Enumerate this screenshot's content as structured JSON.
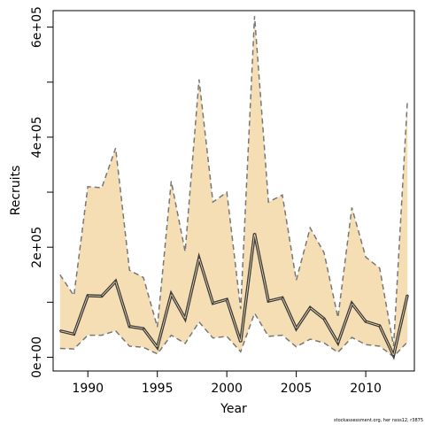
{
  "chart_data": {
    "type": "area",
    "title": "",
    "xlabel": "Year",
    "ylabel": "Recruits",
    "xlim": [
      1987.5,
      2013.5
    ],
    "ylim": [
      -25000,
      630000
    ],
    "x_ticks": [
      1990,
      1995,
      2000,
      2005,
      2010
    ],
    "x_tick_labels": [
      "1990",
      "1995",
      "2000",
      "2005",
      "2010"
    ],
    "y_ticks": [
      0,
      100000,
      200000,
      300000,
      400000,
      500000,
      600000
    ],
    "y_labeled_ticks": [
      0,
      200000,
      400000,
      600000
    ],
    "y_tick_labels": [
      "0e+00",
      "2e+05",
      "4e+05",
      "6e+05"
    ],
    "grid": false,
    "years": [
      1988,
      1989,
      1990,
      1991,
      1992,
      1993,
      1994,
      1995,
      1996,
      1997,
      1998,
      1999,
      2000,
      2001,
      2002,
      2003,
      2004,
      2005,
      2006,
      2007,
      2008,
      2009,
      2010,
      2011,
      2012,
      2013
    ],
    "series": [
      {
        "values": [
          48000,
          42000,
          112000,
          111000,
          138000,
          56000,
          52000,
          18000,
          115000,
          70000,
          180000,
          98000,
          105000,
          28000,
          225000,
          102000,
          108000,
          52000,
          90000,
          70000,
          26000,
          98000,
          65000,
          57000,
          3000,
          113000
        ]
      },
      {
        "values": [
          16000,
          15000,
          40000,
          40000,
          48000,
          20000,
          18000,
          6000,
          40000,
          25000,
          64000,
          35000,
          38000,
          10000,
          80000,
          38000,
          40000,
          19000,
          33000,
          26000,
          9000,
          36000,
          23000,
          20000,
          1000,
          28000
        ]
      },
      {
        "values": [
          150000,
          112000,
          310000,
          308000,
          380000,
          158000,
          145000,
          55000,
          320000,
          192000,
          505000,
          282000,
          300000,
          88000,
          620000,
          282000,
          295000,
          140000,
          235000,
          190000,
          72000,
          272000,
          182000,
          162000,
          20000,
          468000
        ]
      }
    ],
    "colors": {
      "band": "#f5deb3",
      "median": "#3c3c3c",
      "median_edge": "#f5deb3",
      "bounds": "#787878"
    }
  },
  "footnote": "stockassessment.org, her nsss12, r3875"
}
